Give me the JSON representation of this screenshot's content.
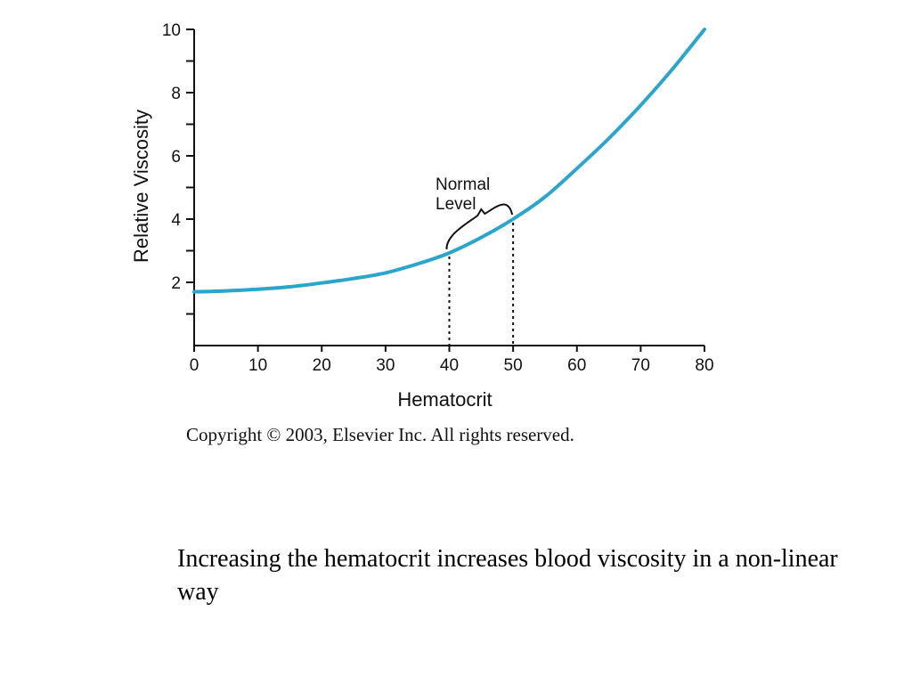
{
  "chart_data": {
    "type": "line",
    "xlabel": "Hematocrit",
    "ylabel": "Relative Viscosity",
    "xlim": [
      0,
      80
    ],
    "ylim": [
      0,
      10
    ],
    "x_ticks": [
      0,
      10,
      20,
      30,
      40,
      50,
      60,
      70,
      80
    ],
    "y_ticks": [
      2,
      4,
      6,
      8,
      10
    ],
    "grid": false,
    "series": [
      {
        "color": "#2aa5cc",
        "x": [
          0,
          5,
          10,
          15,
          20,
          25,
          30,
          35,
          40,
          45,
          50,
          55,
          60,
          65,
          70,
          75,
          80
        ],
        "y": [
          1.7,
          1.73,
          1.78,
          1.86,
          1.98,
          2.12,
          2.3,
          2.58,
          2.93,
          3.42,
          4.0,
          4.7,
          5.6,
          6.55,
          7.6,
          8.75,
          10.0
        ]
      }
    ],
    "annotations": [
      {
        "text_lines": [
          "Normal",
          "Level"
        ],
        "range": [
          40,
          50
        ]
      }
    ]
  },
  "copyright": "Copyright © 2003, Elsevier Inc. All rights reserved.",
  "caption": "Increasing the hematocrit increases blood viscosity in a non-linear way"
}
